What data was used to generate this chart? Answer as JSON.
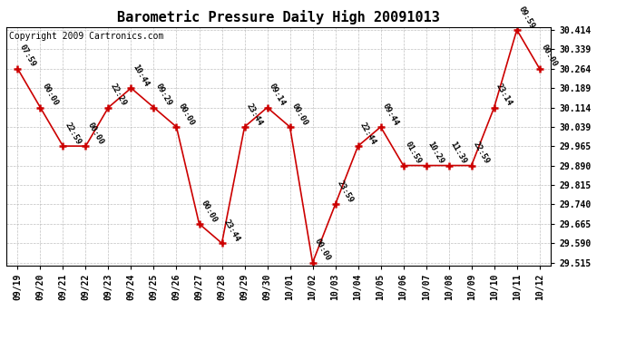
{
  "title": "Barometric Pressure Daily High 20091013",
  "copyright": "Copyright 2009 Cartronics.com",
  "x_labels": [
    "09/19",
    "09/20",
    "09/21",
    "09/22",
    "09/23",
    "09/24",
    "09/25",
    "09/26",
    "09/27",
    "09/28",
    "09/29",
    "09/30",
    "10/01",
    "10/02",
    "10/03",
    "10/04",
    "10/05",
    "10/06",
    "10/07",
    "10/08",
    "10/09",
    "10/10",
    "10/11",
    "10/12"
  ],
  "y_values": [
    30.264,
    30.114,
    29.965,
    29.965,
    30.114,
    30.189,
    30.114,
    30.039,
    29.665,
    29.59,
    30.039,
    30.114,
    30.039,
    29.515,
    29.74,
    29.965,
    30.039,
    29.89,
    29.89,
    29.89,
    29.89,
    30.114,
    30.414,
    30.264
  ],
  "point_labels": [
    "07:59",
    "00:00",
    "22:59",
    "00:00",
    "22:29",
    "10:44",
    "09:29",
    "00:00",
    "00:00",
    "23:44",
    "23:44",
    "09:14",
    "00:00",
    "00:00",
    "23:59",
    "22:44",
    "09:44",
    "01:59",
    "10:29",
    "11:39",
    "22:59",
    "23:14",
    "09:59",
    "00:00"
  ],
  "ylim_min": 29.505,
  "ylim_max": 30.424,
  "y_ticks": [
    29.515,
    29.59,
    29.665,
    29.74,
    29.815,
    29.89,
    29.965,
    30.039,
    30.114,
    30.189,
    30.264,
    30.339,
    30.414
  ],
  "line_color": "#cc0000",
  "marker_color": "#cc0000",
  "bg_color": "#ffffff",
  "plot_bg_color": "#ffffff",
  "grid_color": "#b0b0b0",
  "title_fontsize": 11,
  "copyright_fontsize": 7,
  "tick_fontsize": 7,
  "label_fontsize": 6.5
}
